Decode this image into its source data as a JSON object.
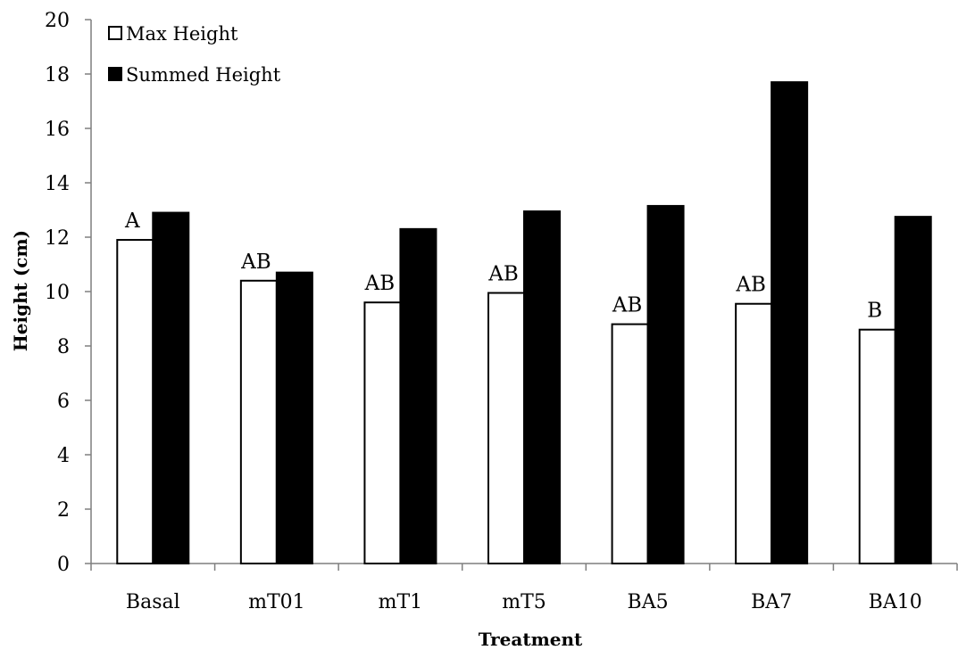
{
  "chart_data": {
    "type": "bar",
    "categories": [
      "Basal",
      "mT01",
      "mT1",
      "mT5",
      "BA5",
      "BA7",
      "BA10"
    ],
    "series": [
      {
        "name": "Max Height",
        "values": [
          11.9,
          10.4,
          9.6,
          9.95,
          8.8,
          9.55,
          8.6
        ],
        "fill": "#ffffff",
        "stroke": "#000000"
      },
      {
        "name": "Summed Height",
        "values": [
          12.9,
          10.7,
          12.3,
          12.95,
          13.15,
          17.7,
          12.75
        ],
        "fill": "#000000",
        "stroke": "#000000"
      }
    ],
    "significance_labels": [
      "A",
      "AB",
      "AB",
      "AB",
      "AB",
      "AB",
      "B"
    ],
    "xlabel": "Treatment",
    "ylabel": "Height (cm)",
    "ylim": [
      0,
      20
    ],
    "yticks": [
      "0",
      "2",
      "4",
      "6",
      "8",
      "10",
      "12",
      "14",
      "16",
      "18",
      "20"
    ],
    "grid": false,
    "legend_position": "top-left"
  }
}
